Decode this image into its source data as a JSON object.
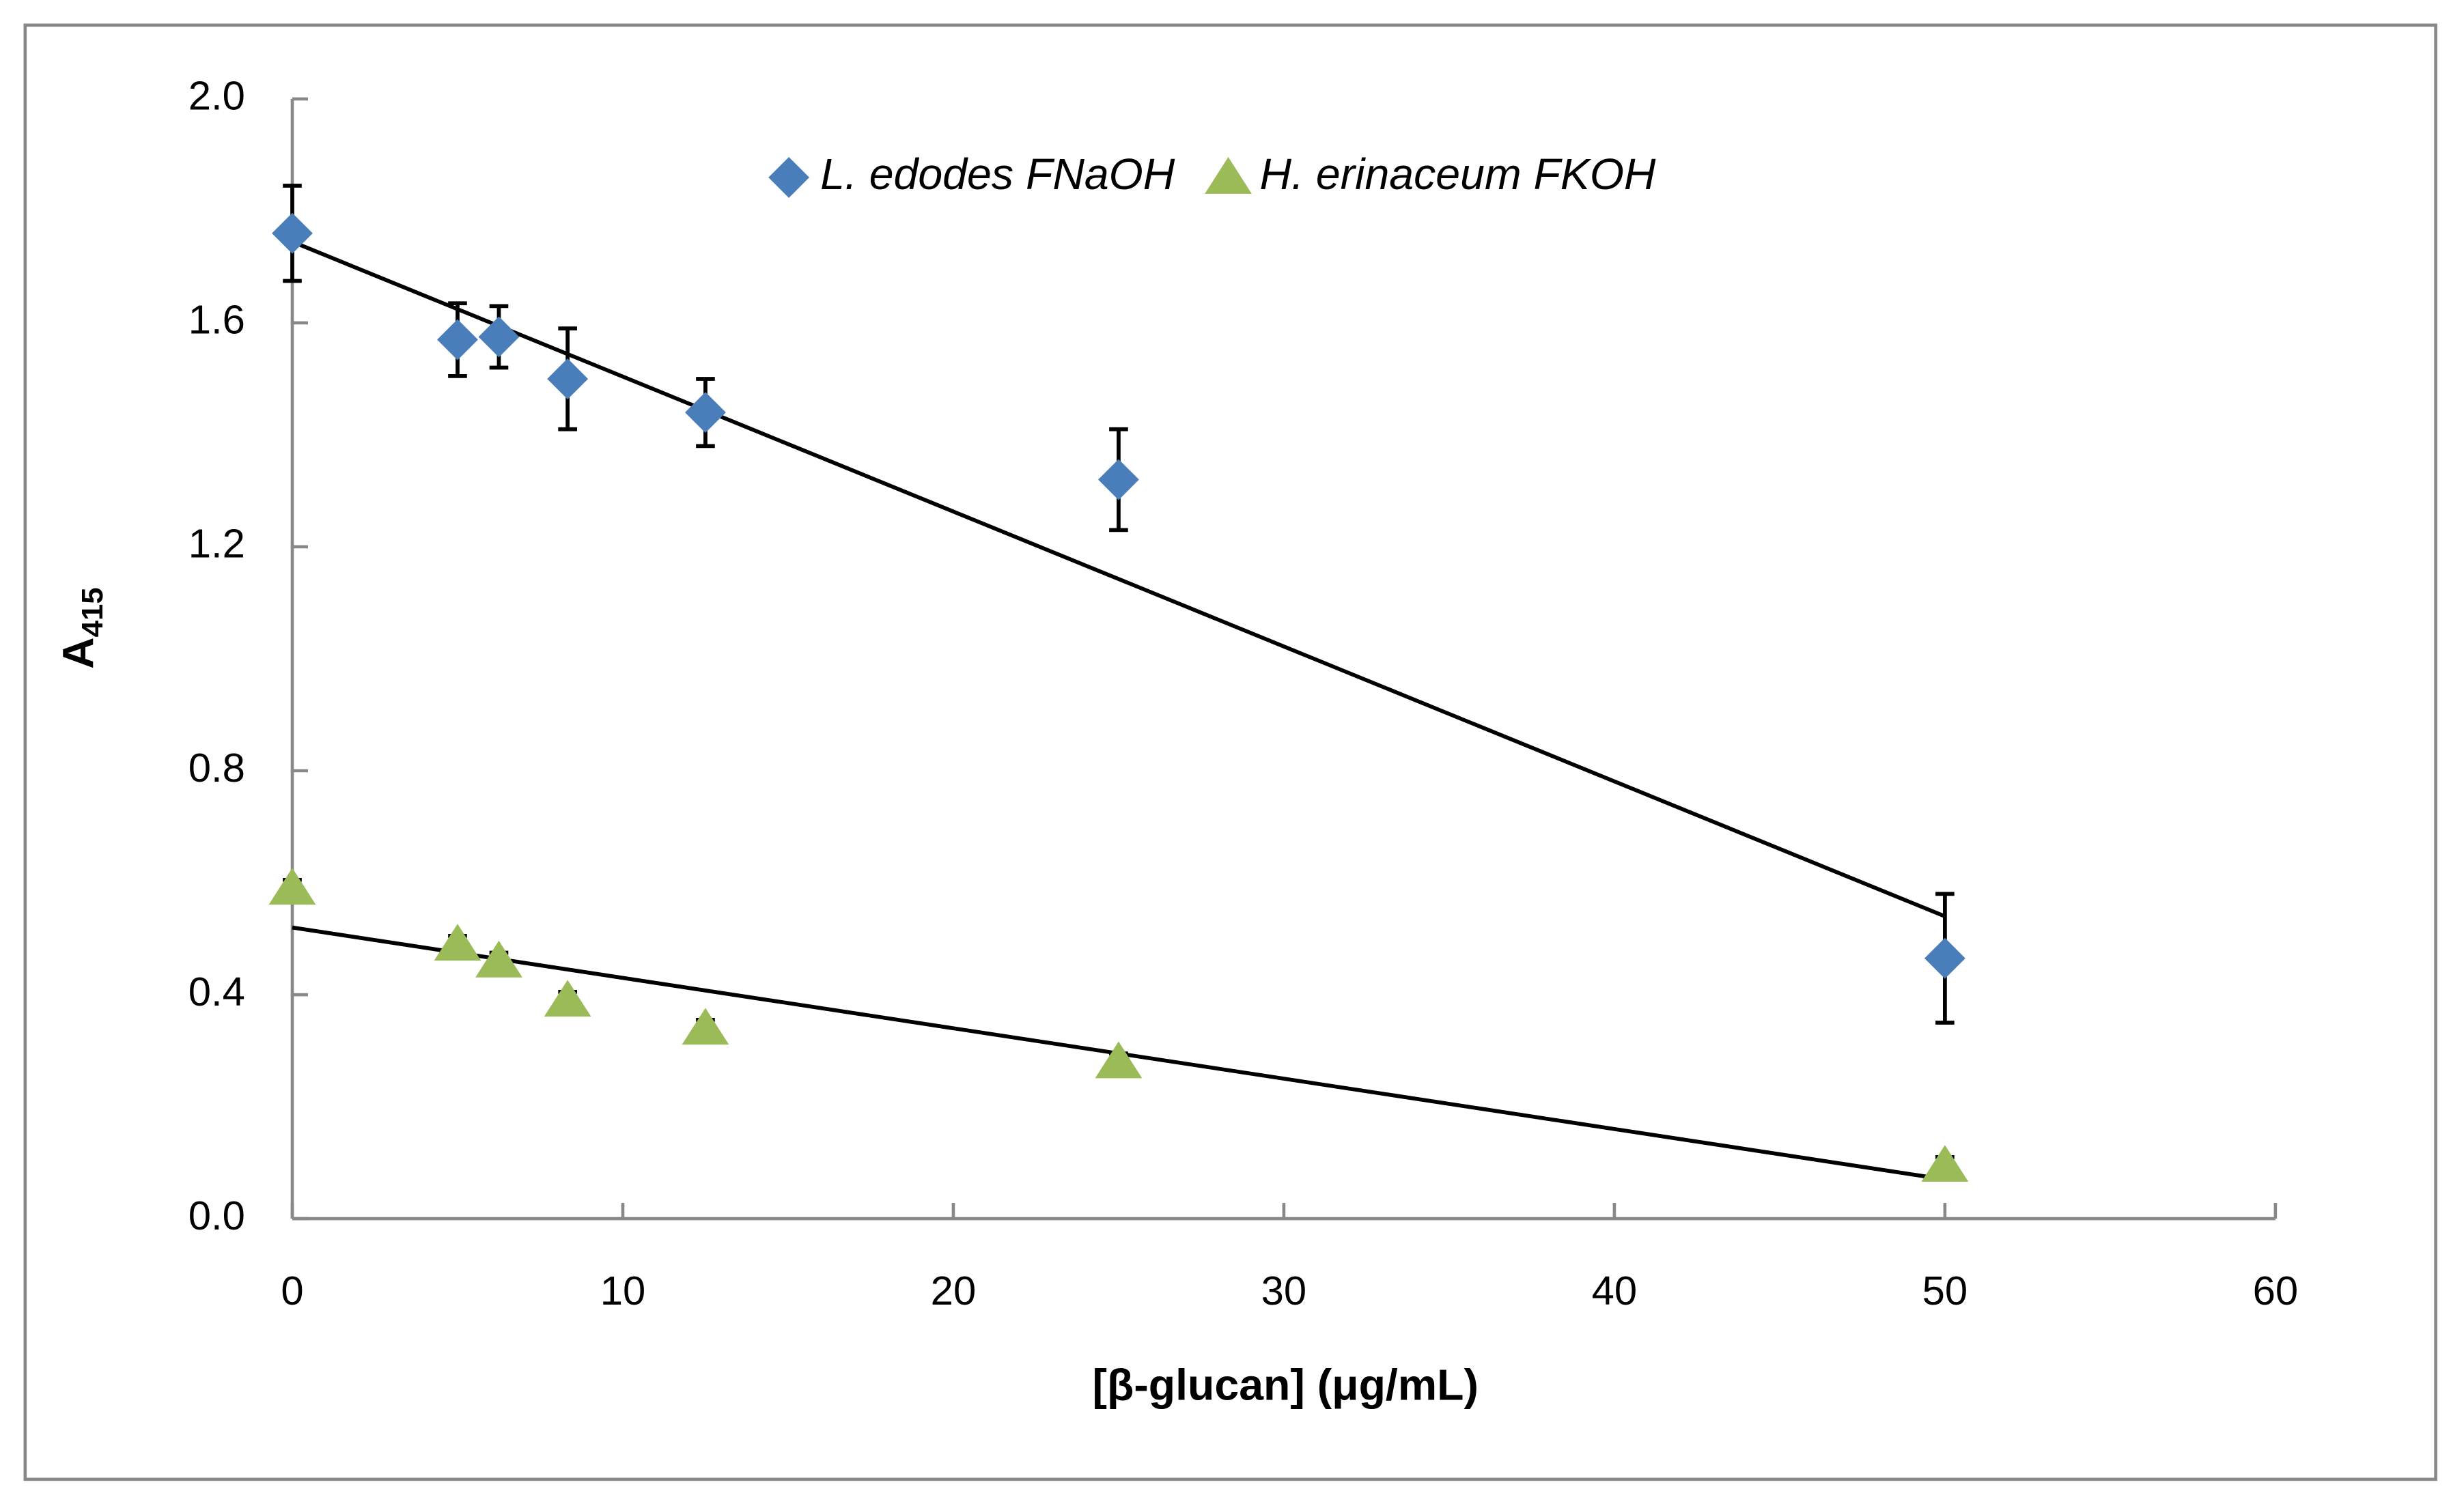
{
  "chart_data": {
    "type": "scatter",
    "x_label": "[β-glucan] (μg/mL)",
    "y_label": {
      "text": "A",
      "subscript": "415"
    },
    "xlim": [
      0,
      60
    ],
    "xticks": [
      0,
      10,
      20,
      30,
      40,
      50,
      60
    ],
    "ylim": [
      0,
      2
    ],
    "yticks": [
      {
        "value": 0,
        "label": "0.0"
      },
      {
        "value": 0.4,
        "label": "0.4"
      },
      {
        "value": 0.8,
        "label": "0.8"
      },
      {
        "value": 1.2,
        "label": "1.2"
      },
      {
        "value": 1.6,
        "label": "1.6"
      },
      {
        "value": 2,
        "label": "2.0"
      }
    ],
    "legend": "top",
    "series": [
      {
        "name": "L. edodes FNaOH",
        "color": "#4a7ebb",
        "marker": "diamond",
        "x": [
          0,
          5,
          6.25,
          8.33,
          12.5,
          25,
          50
        ],
        "values": [
          1.76,
          1.57,
          1.575,
          1.5,
          1.44,
          1.32,
          0.465
        ],
        "errors": [
          0.085,
          0.065,
          0.055,
          0.09,
          0.06,
          0.09,
          0.115
        ],
        "trendline": {
          "intercept": 1.745,
          "slope": -0.0241
        }
      },
      {
        "name": "H. erinaceum FKOH",
        "color": "#9bbb59",
        "marker": "triangle",
        "x": [
          0,
          5,
          6.25,
          8.33,
          12.5,
          25,
          50
        ],
        "values": [
          0.59,
          0.49,
          0.46,
          0.39,
          0.34,
          0.28,
          0.095
        ],
        "errors": [
          0.015,
          0.015,
          0.015,
          0.015,
          0.015,
          0.015,
          0.015
        ],
        "trendline": {
          "intercept": 0.52,
          "slope": -0.009
        }
      }
    ]
  }
}
